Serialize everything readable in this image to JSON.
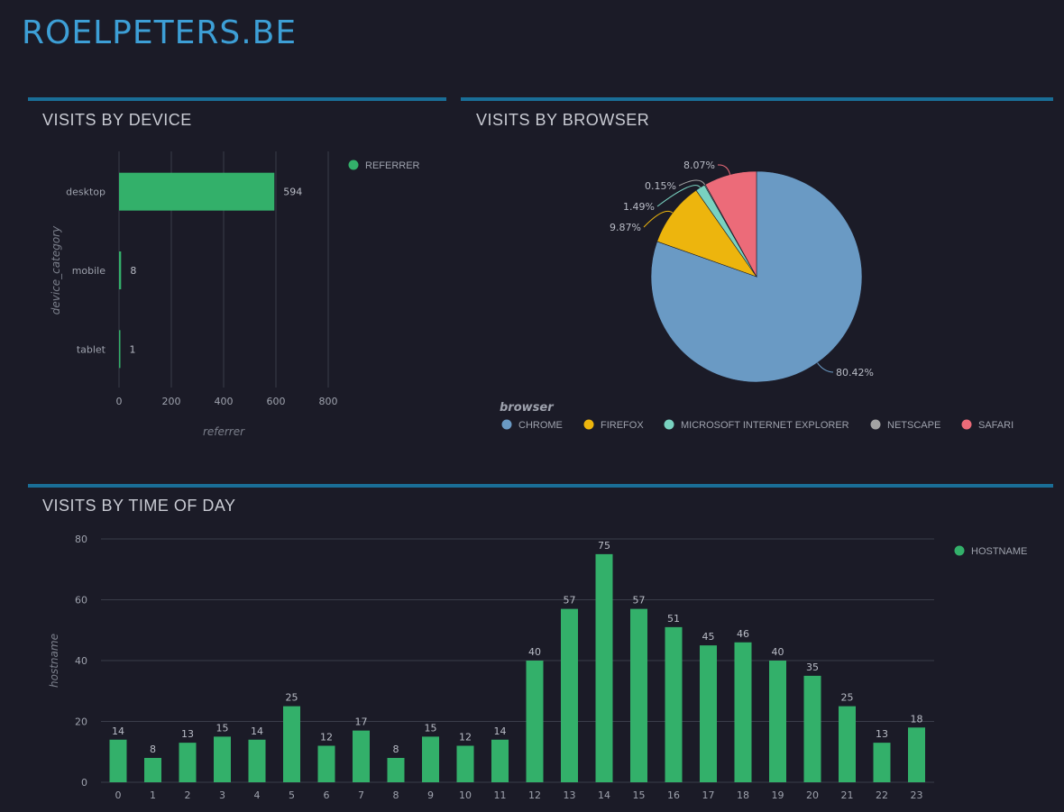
{
  "site": {
    "title": "ROELPETERS.BE"
  },
  "colors": {
    "accent": "#1a6e97",
    "bar": "#33b06a",
    "title": "#3d9fd6"
  },
  "device_panel": {
    "title": "VISITS BY DEVICE",
    "legend": "REFERRER"
  },
  "browser_panel": {
    "title": "VISITS BY BROWSER"
  },
  "time_panel": {
    "title": "VISITS BY TIME OF DAY",
    "legend": "HOSTNAME"
  },
  "chart_data": [
    {
      "type": "bar",
      "orientation": "horizontal",
      "title": "VISITS BY DEVICE",
      "categories": [
        "desktop",
        "mobile",
        "tablet"
      ],
      "values": [
        594,
        8,
        1
      ],
      "xlabel": "referrer",
      "ylabel": "device_category",
      "xlim": [
        0,
        800
      ],
      "xticks": [
        0,
        200,
        400,
        600,
        800
      ],
      "legend": [
        "REFERRER"
      ],
      "legend_position": "top-right",
      "color": "#33b06a"
    },
    {
      "type": "pie",
      "title": "VISITS BY BROWSER",
      "legend_title": "browser",
      "legend_position": "bottom",
      "slices": [
        {
          "name": "CHROME",
          "percent": 80.42,
          "label": "80.42%",
          "color": "#6a9ac4"
        },
        {
          "name": "FIREFOX",
          "percent": 9.87,
          "label": "9.87%",
          "color": "#edb50d"
        },
        {
          "name": "MICROSOFT INTERNET EXPLORER",
          "percent": 1.49,
          "label": "1.49%",
          "color": "#79d2c0"
        },
        {
          "name": "NETSCAPE",
          "percent": 0.15,
          "label": "0.15%",
          "color": "#a3a3a3"
        },
        {
          "name": "SAFARI",
          "percent": 8.07,
          "label": "8.07%",
          "color": "#ec6b79"
        }
      ]
    },
    {
      "type": "bar",
      "title": "VISITS BY TIME OF DAY",
      "categories": [
        "0",
        "1",
        "2",
        "3",
        "4",
        "5",
        "6",
        "7",
        "8",
        "9",
        "10",
        "11",
        "12",
        "13",
        "14",
        "15",
        "16",
        "17",
        "18",
        "19",
        "20",
        "21",
        "22",
        "23"
      ],
      "values": [
        14,
        8,
        13,
        15,
        14,
        25,
        12,
        17,
        8,
        15,
        12,
        14,
        40,
        57,
        75,
        57,
        51,
        45,
        46,
        40,
        35,
        25,
        13,
        18
      ],
      "ylabel": "hostname",
      "ylim": [
        0,
        80
      ],
      "yticks": [
        0,
        20,
        40,
        60,
        80
      ],
      "legend": [
        "HOSTNAME"
      ],
      "legend_position": "top-right",
      "grid": true,
      "color": "#33b06a"
    }
  ]
}
